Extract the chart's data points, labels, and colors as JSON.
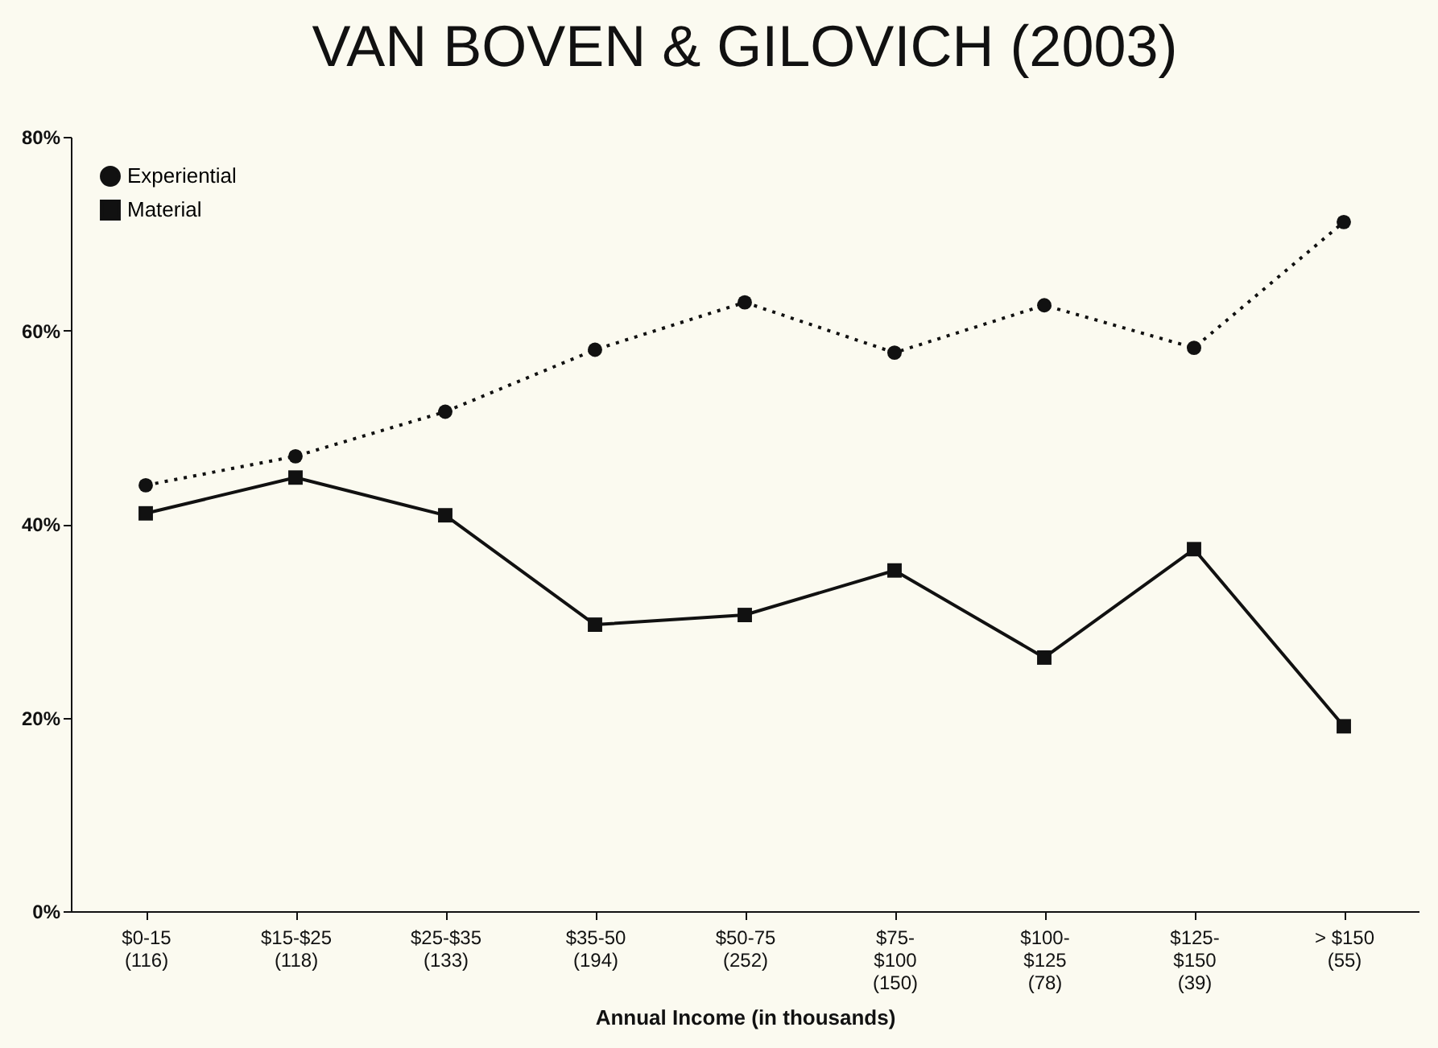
{
  "chart_data": {
    "type": "line",
    "title": "VAN BOVEN & GILOVICH (2003)",
    "xlabel": "Annual Income (in thousands)",
    "categories": [
      "$0-15\n(116)",
      "$15-$25\n(118)",
      "$25-$35\n(133)",
      "$35-50\n(194)",
      "$50-75\n(252)",
      "$75-\n$100\n(150)",
      "$100-\n$125\n(78)",
      "$125-\n$150\n(39)",
      "> $150\n(55)"
    ],
    "series": [
      {
        "name": "Experiential",
        "color": "#111111",
        "marker": "circle",
        "line_style": "dotted",
        "values": [
          44,
          47,
          51.6,
          58,
          62.9,
          57.7,
          62.6,
          58.2,
          71.2
        ]
      },
      {
        "name": "Material",
        "color": "#111111",
        "marker": "square",
        "line_style": "solid",
        "values": [
          41.1,
          44.8,
          40.9,
          29.6,
          30.6,
          35.2,
          26.2,
          37.4,
          19.1
        ]
      }
    ],
    "ylim": [
      0,
      80
    ],
    "yticks": [
      {
        "value": 0,
        "label": "0%"
      },
      {
        "value": 20,
        "label": "20%"
      },
      {
        "value": 40,
        "label": "40%"
      },
      {
        "value": 60,
        "label": "60%"
      },
      {
        "value": 80,
        "label": "80%"
      }
    ],
    "grid": false,
    "legend": "top left"
  }
}
